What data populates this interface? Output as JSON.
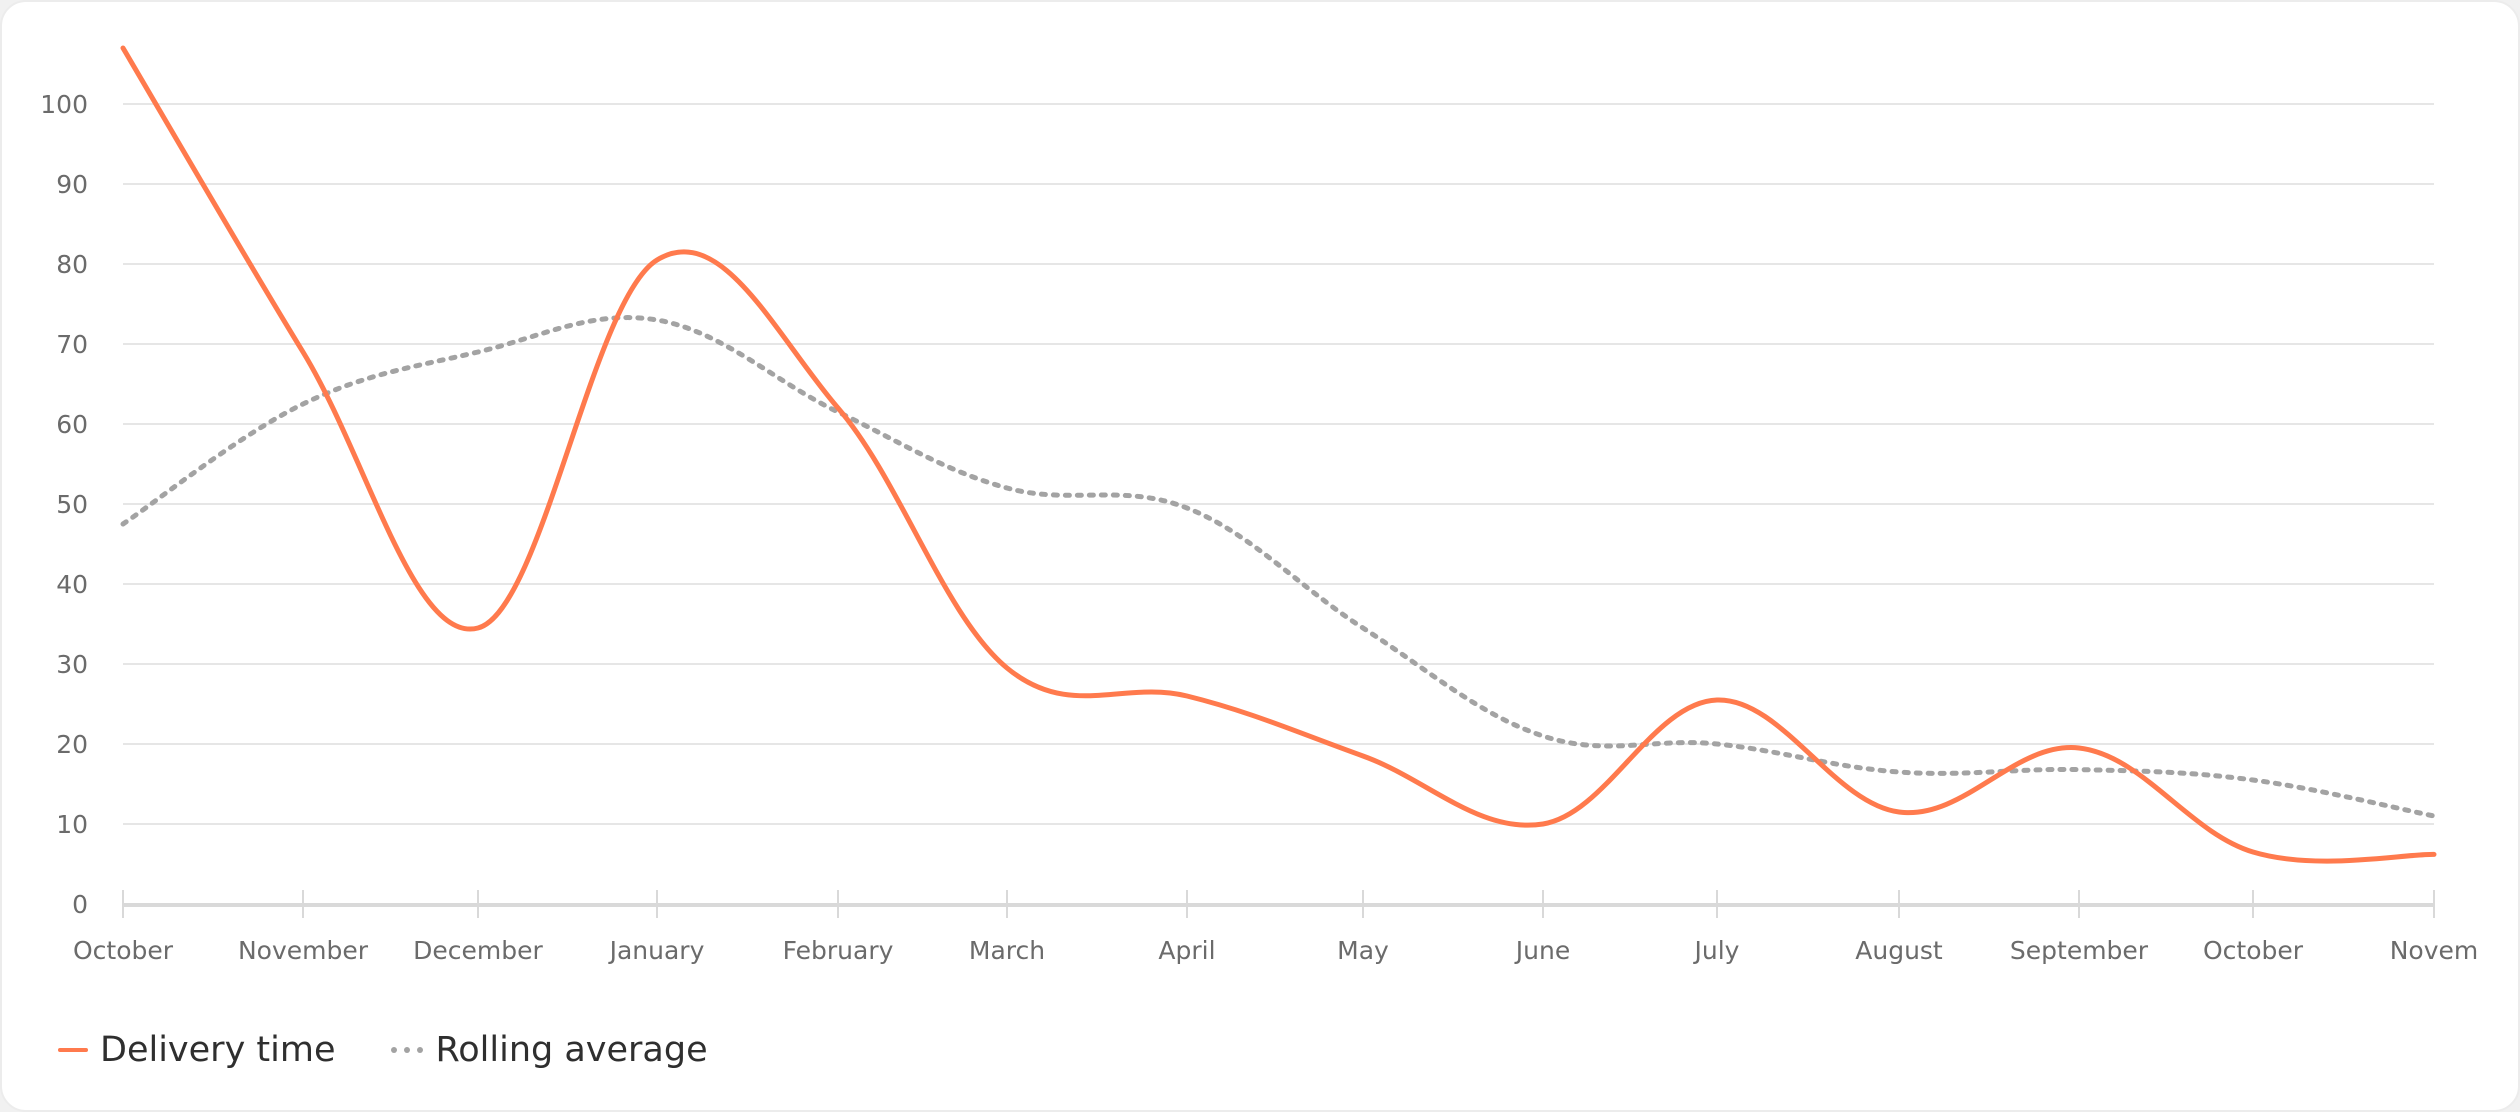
{
  "chart_data": {
    "type": "line",
    "categories": [
      "October",
      "November",
      "December",
      "January",
      "February",
      "March",
      "April",
      "May",
      "June",
      "July",
      "August",
      "September",
      "October",
      "Novem"
    ],
    "series": [
      {
        "name": "Delivery time",
        "color": "#ff7a4d",
        "style": "solid",
        "values": [
          107,
          69,
          34.5,
          80.5,
          62,
          29.5,
          26,
          18.5,
          10,
          25.5,
          11.5,
          19.5,
          6.5,
          6.2
        ]
      },
      {
        "name": "Rolling average",
        "color": "#a3a3a3",
        "style": "dotted",
        "values": [
          47.5,
          62.5,
          69,
          73,
          61.5,
          52,
          49.5,
          34.5,
          21,
          20,
          16.5,
          16.8,
          15.5,
          11
        ]
      }
    ],
    "yticks": [
      0,
      10,
      20,
      30,
      40,
      50,
      60,
      70,
      80,
      90,
      100
    ],
    "ylim": [
      0,
      100
    ],
    "grid": true,
    "legend_position": "bottom-left"
  }
}
